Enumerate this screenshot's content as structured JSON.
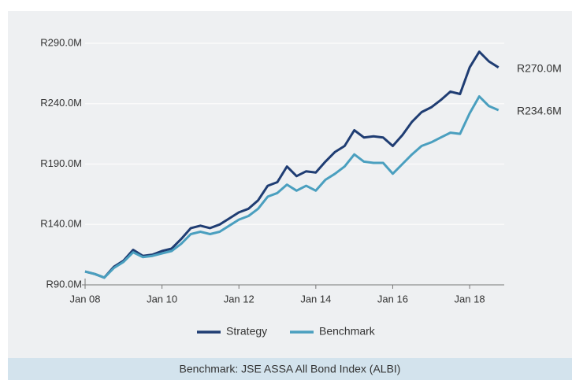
{
  "chart_data": {
    "type": "line",
    "footer": "Benchmark: JSE ASSA All Bond Index (ALBI)",
    "x": [
      2008.0,
      2008.25,
      2008.5,
      2008.75,
      2009.0,
      2009.25,
      2009.5,
      2009.75,
      2010.0,
      2010.25,
      2010.5,
      2010.75,
      2011.0,
      2011.25,
      2011.5,
      2011.75,
      2012.0,
      2012.25,
      2012.5,
      2012.75,
      2013.0,
      2013.25,
      2013.5,
      2013.75,
      2014.0,
      2014.25,
      2014.5,
      2014.75,
      2015.0,
      2015.25,
      2015.5,
      2015.75,
      2016.0,
      2016.25,
      2016.5,
      2016.75,
      2017.0,
      2017.25,
      2017.5,
      2017.75,
      2018.0,
      2018.25,
      2018.5,
      2018.75
    ],
    "series": [
      {
        "name": "Strategy",
        "color": "#1f3d73",
        "values": [
          101,
          99,
          96,
          105,
          110,
          119,
          114,
          115,
          118,
          120,
          128,
          137,
          139,
          137,
          140,
          145,
          150,
          153,
          160,
          172,
          175,
          188,
          180,
          184,
          183,
          192,
          200,
          205,
          218,
          212,
          213,
          212,
          205,
          214,
          225,
          233,
          237,
          243,
          250,
          248,
          270,
          283,
          275,
          270.0
        ],
        "value_labels": [
          null,
          null,
          null,
          null,
          null,
          null,
          null,
          null,
          null,
          null,
          null,
          null,
          null,
          null,
          null,
          null,
          null,
          null,
          null,
          null,
          null,
          null,
          null,
          null,
          null,
          null,
          null,
          null,
          null,
          null,
          null,
          null,
          null,
          null,
          null,
          null,
          null,
          null,
          null,
          null,
          null,
          null,
          null,
          "R270.0M"
        ]
      },
      {
        "name": "Benchmark",
        "color": "#4a9fbf",
        "values": [
          101,
          99,
          96,
          104,
          109,
          117,
          113,
          114,
          116,
          118,
          124,
          132,
          134,
          132,
          134,
          139,
          144,
          147,
          153,
          163,
          166,
          173,
          168,
          172,
          168,
          177,
          182,
          188,
          198,
          192,
          191,
          191,
          182,
          190,
          198,
          205,
          208,
          212,
          216,
          215,
          232,
          246,
          238,
          234.6
        ],
        "value_labels": [
          null,
          null,
          null,
          null,
          null,
          null,
          null,
          null,
          null,
          null,
          null,
          null,
          null,
          null,
          null,
          null,
          null,
          null,
          null,
          null,
          null,
          null,
          null,
          null,
          null,
          null,
          null,
          null,
          null,
          null,
          null,
          null,
          null,
          null,
          null,
          null,
          null,
          null,
          null,
          null,
          null,
          null,
          null,
          "R234.6M"
        ]
      }
    ],
    "xlim": [
      2008,
      2018.9
    ],
    "xticks": [
      {
        "value": 2008,
        "label": "Jan 08"
      },
      {
        "value": 2010,
        "label": "Jan 10"
      },
      {
        "value": 2012,
        "label": "Jan 12"
      },
      {
        "value": 2014,
        "label": "Jan 14"
      },
      {
        "value": 2016,
        "label": "Jan 16"
      },
      {
        "value": 2018,
        "label": "Jan 18"
      }
    ],
    "ylim": [
      90,
      290
    ],
    "yticks": [
      {
        "value": 90,
        "label": "R90.0M"
      },
      {
        "value": 140,
        "label": "R140.0M"
      },
      {
        "value": 190,
        "label": "R190.0M"
      },
      {
        "value": 240,
        "label": "R240.0M"
      },
      {
        "value": 290,
        "label": "R290.0M"
      }
    ],
    "grid": true
  }
}
